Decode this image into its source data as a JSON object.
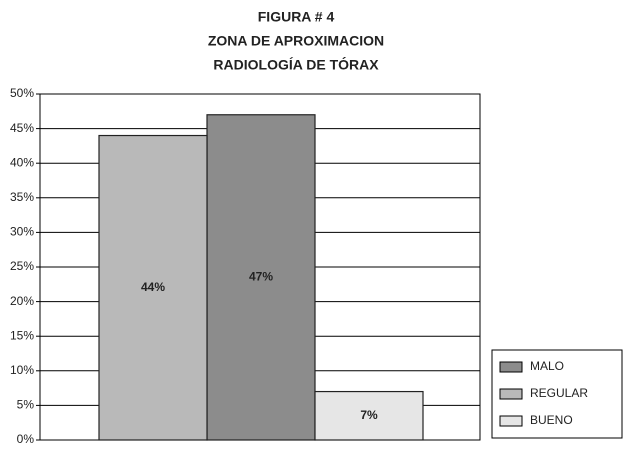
{
  "chart_data": {
    "type": "bar",
    "title": [
      "FIGURA # 4",
      "ZONA DE APROXIMACION",
      "RADIOLOGÍA DE TÓRAX"
    ],
    "categories": [
      null
    ],
    "series": [
      {
        "name": "MALO",
        "color": "#8c8c8c",
        "values": [
          47
        ],
        "value_labels": [
          "47%"
        ]
      },
      {
        "name": "REGULAR",
        "color": "#b9b9b9",
        "values": [
          44
        ],
        "value_labels": [
          "44%"
        ]
      },
      {
        "name": "BUENO",
        "color": "#e6e6e6",
        "values": [
          7
        ],
        "value_labels": [
          "7%"
        ]
      }
    ],
    "ylim": [
      0,
      50
    ],
    "yticks": [
      {
        "value": 0,
        "label": "0%"
      },
      {
        "value": 5,
        "label": "5%"
      },
      {
        "value": 10,
        "label": "10%"
      },
      {
        "value": 15,
        "label": "15%"
      },
      {
        "value": 20,
        "label": "20%"
      },
      {
        "value": 25,
        "label": "25%"
      },
      {
        "value": 30,
        "label": "30%"
      },
      {
        "value": 35,
        "label": "35%"
      },
      {
        "value": 40,
        "label": "40%"
      },
      {
        "value": 45,
        "label": "45%"
      },
      {
        "value": 50,
        "label": "50%"
      }
    ],
    "grid": true,
    "legend": "right"
  }
}
